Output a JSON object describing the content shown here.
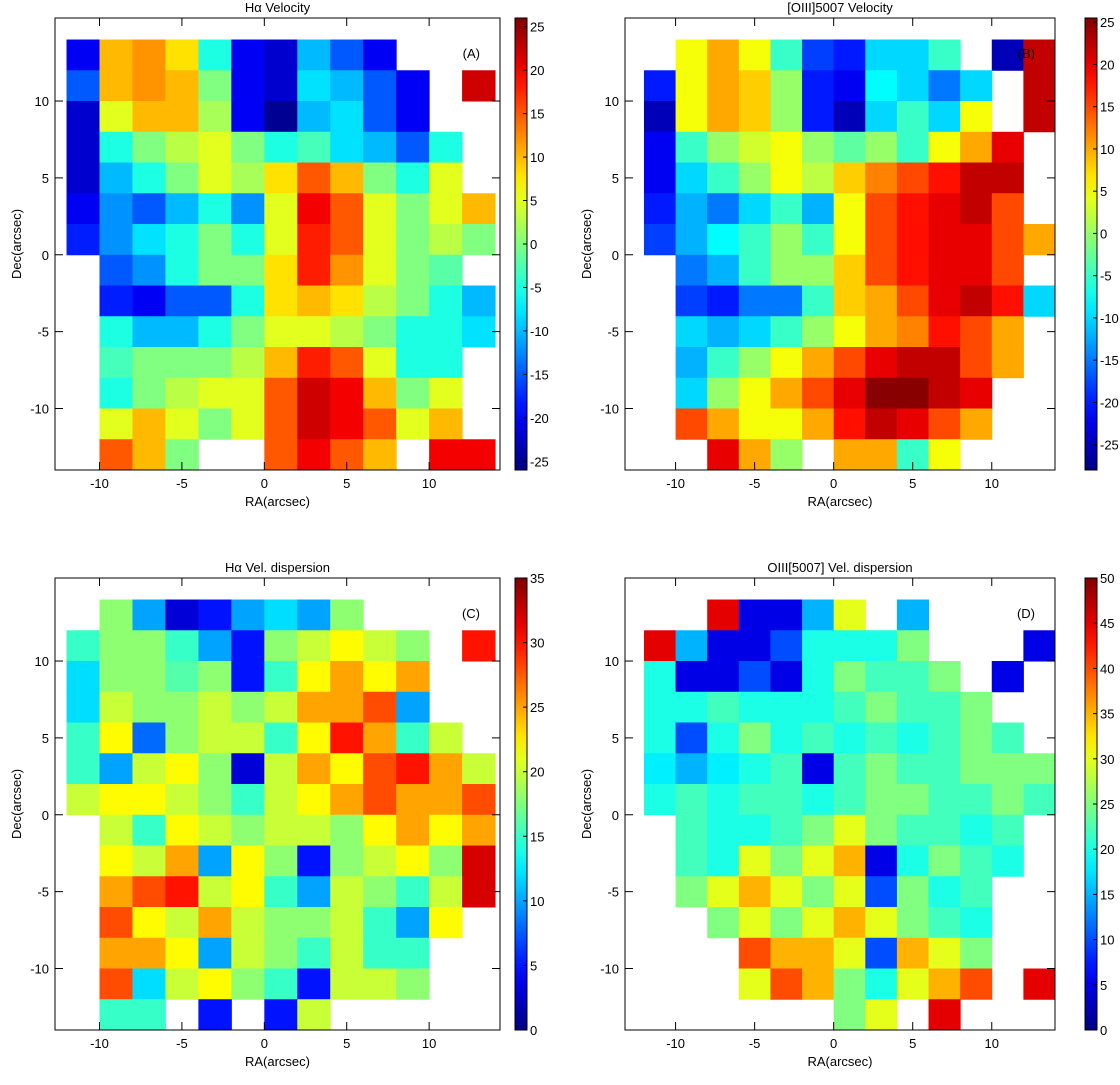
{
  "chart_data": [
    {
      "type": "heatmap",
      "title": "Hα Velocity",
      "panel_label": "(A)",
      "xlabel": "RA(arcsec)",
      "ylabel": "Dec(arcsec)",
      "colormap": "jet",
      "xlim": [
        -12.7,
        14.3
      ],
      "ylim": [
        -14,
        15.4
      ],
      "xticks": [
        -10,
        -5,
        0,
        5,
        10
      ],
      "yticks": [
        -10,
        -5,
        0,
        5,
        10
      ],
      "zlim": [
        -26,
        26
      ],
      "zticks": [
        -25,
        -20,
        -15,
        -10,
        -5,
        0,
        5,
        10,
        15,
        20,
        25
      ],
      "x": [
        -11,
        -9,
        -7,
        -5,
        -3,
        -1,
        1,
        3,
        5,
        7,
        9,
        11,
        13
      ],
      "y": [
        13,
        11,
        9,
        7,
        5,
        3,
        1,
        -1,
        -3,
        -5,
        -7,
        -9,
        -11,
        -13
      ],
      "values": [
        [
          -20,
          10,
          12,
          8,
          -5,
          -20,
          -22,
          -10,
          -15,
          -20,
          null,
          null,
          null
        ],
        [
          -15,
          10,
          12,
          10,
          0,
          -20,
          -22,
          -8,
          -10,
          -15,
          -20,
          null,
          22
        ],
        [
          -22,
          5,
          10,
          10,
          2,
          -20,
          -25,
          -10,
          -8,
          -15,
          -20,
          null,
          null
        ],
        [
          -22,
          -5,
          0,
          3,
          5,
          0,
          -5,
          -3,
          -8,
          -10,
          -15,
          -5,
          null
        ],
        [
          -22,
          -10,
          -5,
          0,
          5,
          2,
          8,
          15,
          10,
          0,
          -5,
          5,
          null
        ],
        [
          -20,
          -12,
          -15,
          -10,
          -5,
          -12,
          5,
          20,
          15,
          5,
          0,
          5,
          10
        ],
        [
          -18,
          -12,
          -8,
          -5,
          0,
          -5,
          5,
          18,
          15,
          5,
          0,
          3,
          0
        ],
        [
          null,
          -15,
          -12,
          -5,
          0,
          0,
          8,
          18,
          12,
          5,
          0,
          -2,
          null
        ],
        [
          null,
          -18,
          -20,
          -15,
          -15,
          -5,
          8,
          10,
          8,
          3,
          0,
          -5,
          -10
        ],
        [
          null,
          -5,
          -10,
          -10,
          -5,
          0,
          5,
          5,
          3,
          0,
          -5,
          -5,
          -8
        ],
        [
          null,
          -3,
          0,
          0,
          0,
          3,
          10,
          18,
          15,
          5,
          -5,
          -5,
          null
        ],
        [
          null,
          -5,
          0,
          3,
          5,
          5,
          15,
          22,
          20,
          10,
          0,
          5,
          null
        ],
        [
          null,
          5,
          10,
          5,
          0,
          5,
          15,
          22,
          20,
          15,
          5,
          10,
          null
        ],
        [
          null,
          15,
          10,
          0,
          null,
          null,
          15,
          20,
          15,
          10,
          null,
          20,
          20
        ]
      ]
    },
    {
      "type": "heatmap",
      "title": "[OIII]5007 Velocity",
      "panel_label": "(B)",
      "xlabel": "RA(arcsec)",
      "ylabel": "Dec(arcsec)",
      "colormap": "jet",
      "xlim": [
        -13.2,
        14.0
      ],
      "ylim": [
        -14,
        15.4
      ],
      "xticks": [
        -10,
        -5,
        0,
        5,
        10
      ],
      "yticks": [
        -10,
        -5,
        0,
        5,
        10
      ],
      "zlim": [
        -28,
        25.5
      ],
      "zticks": [
        -25,
        -20,
        -15,
        -10,
        -5,
        0,
        5,
        10,
        15,
        20,
        25
      ],
      "x": [
        -11,
        -9,
        -7,
        -5,
        -3,
        -1,
        1,
        3,
        5,
        7,
        9,
        11,
        13
      ],
      "y": [
        13,
        11,
        9,
        7,
        5,
        3,
        1,
        -1,
        -3,
        -5,
        -7,
        -9,
        -11,
        -13
      ],
      "values": [
        [
          null,
          5,
          10,
          5,
          -5,
          -18,
          -20,
          -10,
          -10,
          -5,
          null,
          -25,
          22
        ],
        [
          -20,
          5,
          10,
          8,
          0,
          -20,
          -22,
          -8,
          -10,
          -15,
          -10,
          null,
          22
        ],
        [
          -25,
          5,
          10,
          8,
          0,
          -20,
          -25,
          -10,
          -5,
          -10,
          5,
          null,
          22
        ],
        [
          -22,
          -5,
          0,
          3,
          5,
          0,
          -3,
          0,
          -5,
          5,
          10,
          20,
          null
        ],
        [
          -22,
          -10,
          -5,
          0,
          5,
          2,
          8,
          12,
          15,
          18,
          22,
          22,
          null
        ],
        [
          -20,
          -12,
          -15,
          -10,
          -5,
          -12,
          5,
          15,
          18,
          20,
          22,
          15,
          null
        ],
        [
          -18,
          -12,
          -8,
          -5,
          0,
          -5,
          5,
          15,
          18,
          20,
          20,
          15,
          10
        ],
        [
          null,
          -15,
          -12,
          -5,
          0,
          0,
          8,
          15,
          18,
          20,
          20,
          15,
          null
        ],
        [
          null,
          -18,
          -20,
          -15,
          -15,
          -5,
          8,
          10,
          15,
          20,
          22,
          18,
          -10
        ],
        [
          null,
          -10,
          -12,
          -10,
          -5,
          0,
          5,
          10,
          12,
          18,
          15,
          10,
          null
        ],
        [
          null,
          -12,
          -5,
          0,
          5,
          10,
          15,
          20,
          22,
          22,
          15,
          10,
          null
        ],
        [
          null,
          -10,
          0,
          5,
          10,
          15,
          20,
          25,
          25,
          22,
          20,
          null,
          null
        ],
        [
          null,
          15,
          10,
          5,
          5,
          10,
          18,
          22,
          20,
          15,
          10,
          null,
          null
        ],
        [
          null,
          null,
          20,
          10,
          0,
          null,
          10,
          10,
          -5,
          5,
          null,
          null,
          null
        ]
      ]
    },
    {
      "type": "heatmap",
      "title": "Hα Vel. dispersion",
      "panel_label": "(C)",
      "xlabel": "RA(arcsec)",
      "ylabel": "Dec(arcsec)",
      "colormap": "jet",
      "xlim": [
        -12.7,
        14.3
      ],
      "ylim": [
        -14,
        15.4
      ],
      "xticks": [
        -10,
        -5,
        0,
        5,
        10
      ],
      "yticks": [
        -10,
        -5,
        0,
        5,
        10
      ],
      "zlim": [
        0,
        35
      ],
      "zticks": [
        0,
        5,
        10,
        15,
        20,
        25,
        30,
        35
      ],
      "x": [
        -11,
        -9,
        -7,
        -5,
        -3,
        -1,
        1,
        3,
        5,
        7,
        9,
        11,
        13
      ],
      "y": [
        13,
        11,
        9,
        7,
        5,
        3,
        1,
        -1,
        -3,
        -5,
        -7,
        -9,
        -11,
        -13
      ],
      "values": [
        [
          null,
          18,
          10,
          3,
          5,
          10,
          12,
          10,
          18,
          null,
          null,
          null,
          null
        ],
        [
          15,
          18,
          18,
          15,
          10,
          5,
          18,
          20,
          22,
          20,
          18,
          null,
          30
        ],
        [
          12,
          18,
          18,
          16,
          18,
          5,
          15,
          22,
          25,
          22,
          25,
          null,
          null
        ],
        [
          12,
          20,
          18,
          18,
          20,
          18,
          20,
          25,
          25,
          28,
          10,
          null,
          null
        ],
        [
          15,
          22,
          8,
          18,
          20,
          20,
          15,
          22,
          30,
          25,
          15,
          20,
          null
        ],
        [
          15,
          10,
          20,
          22,
          18,
          3,
          20,
          25,
          22,
          28,
          30,
          25,
          20
        ],
        [
          20,
          22,
          22,
          20,
          18,
          15,
          20,
          22,
          25,
          28,
          25,
          25,
          28
        ],
        [
          null,
          20,
          15,
          22,
          20,
          18,
          20,
          20,
          18,
          22,
          25,
          22,
          25
        ],
        [
          null,
          22,
          20,
          25,
          10,
          22,
          18,
          5,
          18,
          20,
          22,
          18,
          32
        ],
        [
          null,
          25,
          28,
          30,
          20,
          22,
          15,
          10,
          20,
          18,
          15,
          20,
          32
        ],
        [
          null,
          28,
          22,
          20,
          25,
          20,
          18,
          18,
          20,
          15,
          10,
          22,
          null
        ],
        [
          null,
          25,
          25,
          22,
          10,
          20,
          18,
          15,
          20,
          15,
          15,
          null,
          null
        ],
        [
          null,
          28,
          12,
          20,
          22,
          18,
          15,
          5,
          20,
          20,
          18,
          null,
          null
        ],
        [
          null,
          15,
          15,
          null,
          5,
          null,
          5,
          20,
          null,
          null,
          null,
          null,
          null
        ]
      ]
    },
    {
      "type": "heatmap",
      "title": "OIII[5007] Vel. dispersion",
      "panel_label": "(D)",
      "xlabel": "RA(arcsec)",
      "ylabel": "Dec(arcsec)",
      "colormap": "jet",
      "xlim": [
        -13.2,
        14.0
      ],
      "ylim": [
        -14,
        15.4
      ],
      "xticks": [
        -10,
        -5,
        0,
        5,
        10
      ],
      "yticks": [
        -10,
        -5,
        0,
        5,
        10
      ],
      "zlim": [
        0,
        50
      ],
      "zticks": [
        0,
        5,
        10,
        15,
        20,
        25,
        30,
        35,
        40,
        45,
        50
      ],
      "x": [
        -11,
        -9,
        -7,
        -5,
        -3,
        -1,
        1,
        3,
        5,
        7,
        9,
        11,
        13
      ],
      "y": [
        13,
        11,
        9,
        7,
        5,
        3,
        1,
        -1,
        -3,
        -5,
        -7,
        -9,
        -11,
        -13
      ],
      "values": [
        [
          null,
          null,
          45,
          5,
          5,
          15,
          30,
          null,
          15,
          null,
          null,
          null,
          null
        ],
        [
          45,
          15,
          5,
          5,
          10,
          20,
          20,
          20,
          25,
          null,
          null,
          null,
          5
        ],
        [
          20,
          5,
          5,
          10,
          5,
          20,
          25,
          22,
          22,
          25,
          null,
          5,
          null
        ],
        [
          20,
          20,
          22,
          20,
          20,
          20,
          22,
          25,
          22,
          22,
          25,
          null,
          null
        ],
        [
          20,
          10,
          20,
          25,
          20,
          22,
          20,
          22,
          20,
          22,
          25,
          22,
          null
        ],
        [
          18,
          15,
          18,
          20,
          22,
          5,
          22,
          25,
          22,
          22,
          25,
          25,
          25
        ],
        [
          20,
          22,
          20,
          22,
          22,
          20,
          22,
          25,
          25,
          22,
          22,
          25,
          22
        ],
        [
          null,
          22,
          20,
          20,
          22,
          25,
          30,
          25,
          22,
          22,
          20,
          22,
          null
        ],
        [
          null,
          22,
          20,
          30,
          25,
          30,
          35,
          5,
          20,
          25,
          22,
          20,
          null
        ],
        [
          null,
          25,
          30,
          35,
          30,
          25,
          30,
          10,
          25,
          20,
          22,
          null,
          null
        ],
        [
          null,
          null,
          25,
          30,
          25,
          30,
          35,
          30,
          25,
          22,
          20,
          null,
          null
        ],
        [
          null,
          null,
          null,
          40,
          35,
          35,
          30,
          10,
          35,
          30,
          25,
          null,
          null
        ],
        [
          null,
          null,
          null,
          30,
          40,
          35,
          25,
          20,
          30,
          35,
          40,
          null,
          45
        ],
        [
          null,
          null,
          null,
          null,
          null,
          null,
          25,
          30,
          null,
          45,
          null,
          null,
          null
        ]
      ]
    }
  ]
}
